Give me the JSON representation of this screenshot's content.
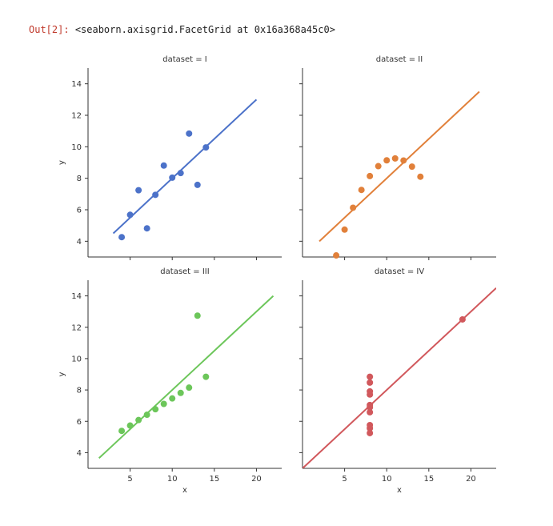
{
  "cell_output": {
    "prompt": "Out[2]:",
    "text": "<seaborn.axisgrid.FacetGrid at 0x16a368a45c0>"
  },
  "chart_data": {
    "type": "scatter",
    "facet_grid": "2x2",
    "xlabel": "x",
    "ylabel": "y",
    "xlim": [
      0,
      23
    ],
    "ylim": [
      3,
      15
    ],
    "xticks": [
      5,
      10,
      15,
      20
    ],
    "yticks": [
      4,
      6,
      8,
      10,
      12,
      14
    ],
    "grid": false,
    "panels": [
      {
        "title": "dataset = I",
        "color": "#4c72c9",
        "points": [
          [
            10,
            8.04
          ],
          [
            8,
            6.95
          ],
          [
            13,
            7.58
          ],
          [
            9,
            8.81
          ],
          [
            11,
            8.33
          ],
          [
            14,
            9.96
          ],
          [
            6,
            7.24
          ],
          [
            4,
            4.26
          ],
          [
            12,
            10.84
          ],
          [
            7,
            4.82
          ],
          [
            5,
            5.68
          ]
        ],
        "fit": {
          "x": [
            3,
            20
          ],
          "y": [
            4.5,
            13.0
          ]
        }
      },
      {
        "title": "dataset = II",
        "color": "#e1803a",
        "points": [
          [
            10,
            9.14
          ],
          [
            8,
            8.14
          ],
          [
            13,
            8.74
          ],
          [
            9,
            8.77
          ],
          [
            11,
            9.26
          ],
          [
            14,
            8.1
          ],
          [
            6,
            6.13
          ],
          [
            4,
            3.1
          ],
          [
            12,
            9.13
          ],
          [
            7,
            7.26
          ],
          [
            5,
            4.74
          ]
        ],
        "fit": {
          "x": [
            2,
            21
          ],
          "y": [
            4.0,
            13.5
          ]
        }
      },
      {
        "title": "dataset = III",
        "color": "#6cc65a",
        "points": [
          [
            10,
            7.46
          ],
          [
            8,
            6.77
          ],
          [
            13,
            12.74
          ],
          [
            9,
            7.11
          ],
          [
            11,
            7.81
          ],
          [
            14,
            8.84
          ],
          [
            6,
            6.08
          ],
          [
            4,
            5.39
          ],
          [
            12,
            8.15
          ],
          [
            7,
            6.42
          ],
          [
            5,
            5.73
          ]
        ],
        "fit": {
          "x": [
            1.3,
            22
          ],
          "y": [
            3.65,
            14.0
          ]
        }
      },
      {
        "title": "dataset = IV",
        "color": "#d1585c",
        "points": [
          [
            8,
            6.58
          ],
          [
            8,
            5.76
          ],
          [
            8,
            7.71
          ],
          [
            8,
            8.84
          ],
          [
            8,
            8.47
          ],
          [
            8,
            7.04
          ],
          [
            8,
            5.25
          ],
          [
            19,
            12.5
          ],
          [
            8,
            5.56
          ],
          [
            8,
            7.91
          ],
          [
            8,
            6.89
          ]
        ],
        "fit": {
          "x": [
            0,
            23
          ],
          "y": [
            3.0,
            14.5
          ]
        }
      }
    ]
  }
}
